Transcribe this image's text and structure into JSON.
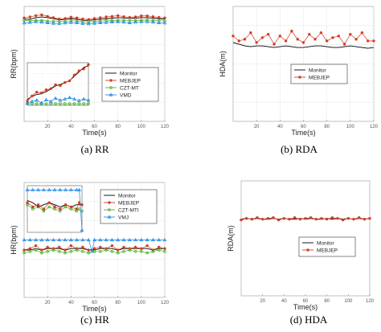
{
  "colors": {
    "monitor": "#000000",
    "mebjep": "#d4381e",
    "czt": "#4caf2a",
    "vmd": "#1e88e5"
  },
  "chart_data": [
    {
      "id": "rr",
      "type": "line",
      "caption": "(a)  RR",
      "xlabel": "Time(s)",
      "ylabel": "RR(bpm)",
      "xlim": [
        0,
        120
      ],
      "ylim": [
        0,
        45
      ],
      "xticks": [
        20,
        40,
        60,
        80,
        100,
        120
      ],
      "grid": true,
      "legend_position": "lower-right",
      "series": [
        {
          "name": "Monitor",
          "key": "monitor",
          "marker": "none",
          "x": [
            0,
            5,
            10,
            15,
            20,
            25,
            30,
            35,
            40,
            45,
            50,
            55,
            60,
            65,
            70,
            75,
            80,
            85,
            90,
            95,
            100,
            105,
            110,
            115,
            120
          ],
          "y": [
            40,
            40,
            40.6,
            40.9,
            40.6,
            40.2,
            39.8,
            39.9,
            40.2,
            40,
            39.6,
            39.5,
            39.8,
            40,
            40.2,
            40.4,
            40.6,
            40.5,
            40.3,
            40.4,
            40.6,
            40.6,
            40.4,
            40.2,
            40
          ]
        },
        {
          "name": "MEBJEP",
          "key": "mebjep",
          "marker": "star",
          "x": [
            0,
            5,
            10,
            15,
            20,
            25,
            30,
            35,
            40,
            45,
            50,
            55,
            60,
            65,
            70,
            75,
            80,
            85,
            90,
            95,
            100,
            105,
            110,
            115,
            120
          ],
          "y": [
            40.5,
            40.9,
            41.4,
            41.7,
            41.1,
            40.6,
            40.1,
            40.3,
            40.8,
            40.5,
            40.1,
            39.9,
            40.3,
            40.6,
            40.9,
            41.1,
            41.4,
            41,
            40.7,
            40.9,
            41.3,
            41.3,
            41,
            40.7,
            40.5
          ]
        },
        {
          "name": "CZT-MT",
          "key": "czt",
          "marker": "circle",
          "x": [
            0,
            5,
            10,
            15,
            20,
            25,
            30,
            35,
            40,
            45,
            50,
            55,
            60,
            65,
            70,
            75,
            80,
            85,
            90,
            95,
            100,
            105,
            110,
            115,
            120
          ],
          "y": [
            39.5,
            39.4,
            39.6,
            39.5,
            39.3,
            39.2,
            39.1,
            39.2,
            39.4,
            39.3,
            39,
            38.9,
            39.1,
            39.3,
            39.4,
            39.5,
            39.6,
            39.6,
            39.4,
            39.5,
            39.6,
            39.7,
            39.5,
            39.4,
            39.3
          ]
        },
        {
          "name": "VMD",
          "key": "vmd",
          "marker": "triangle",
          "x": [
            0,
            5,
            10,
            15,
            20,
            25,
            30,
            35,
            40,
            45,
            50,
            55,
            60,
            65,
            70,
            75,
            80,
            85,
            90,
            95,
            100,
            105,
            110,
            115,
            120
          ],
          "y": [
            38.5,
            38.7,
            39,
            38.8,
            38.6,
            38.4,
            38.3,
            38.5,
            38.7,
            38.6,
            38.3,
            38.2,
            38.4,
            38.6,
            38.7,
            38.9,
            39,
            38.8,
            38.6,
            38.8,
            39,
            39,
            38.8,
            38.6,
            38.5
          ]
        }
      ],
      "inset": {
        "xlim": [
          20,
          72
        ],
        "ylim": [
          34,
          45
        ],
        "x": [
          20,
          24,
          28,
          32,
          36,
          40,
          44,
          48,
          52,
          56,
          60,
          64,
          68,
          72
        ],
        "monitor": [
          35.5,
          36.3,
          36.8,
          37,
          37.5,
          38.2,
          39,
          39.4,
          39.8,
          40.4,
          41.5,
          42.6,
          43.8,
          44.2
        ],
        "mebjep": [
          35.1,
          36.4,
          37.4,
          37.2,
          38,
          38.3,
          39.3,
          39.1,
          39.9,
          40.3,
          41.8,
          42.9,
          43.4,
          44.5
        ],
        "czt": [
          34.4,
          34.4,
          34.4,
          34.4,
          34.4,
          34.4,
          34.4,
          34.4,
          34.4,
          34.4,
          34.4,
          34.4,
          34.4,
          34.4
        ],
        "vmd": [
          34.6,
          35,
          35.3,
          34.6,
          35.4,
          35,
          35.8,
          35.3,
          35.6,
          36,
          35.6,
          35.2,
          35.6,
          35.3
        ]
      }
    },
    {
      "id": "rda",
      "type": "line",
      "caption": "(b)  RDA",
      "xlabel": "Time(s)",
      "ylabel": "HDA(m)",
      "xlim": [
        0,
        120
      ],
      "ylim": [
        0,
        7
      ],
      "xticks": [
        20,
        40,
        60,
        80,
        100,
        120
      ],
      "grid": true,
      "legend_position": "lower-right",
      "series": [
        {
          "name": "Monitor",
          "key": "monitor",
          "marker": "none",
          "x": [
            0,
            5,
            10,
            15,
            20,
            25,
            30,
            35,
            40,
            45,
            50,
            55,
            60,
            65,
            70,
            75,
            80,
            85,
            90,
            95,
            100,
            105,
            110,
            115,
            120
          ],
          "y": [
            4.8,
            4.7,
            4.6,
            4.55,
            4.6,
            4.6,
            4.55,
            4.5,
            4.55,
            4.6,
            4.55,
            4.5,
            4.5,
            4.55,
            4.6,
            4.6,
            4.55,
            4.5,
            4.5,
            4.55,
            4.6,
            4.55,
            4.5,
            4.45,
            4.5
          ]
        },
        {
          "name": "MEBJEP",
          "key": "mebjep",
          "marker": "star",
          "x": [
            0,
            5,
            10,
            15,
            20,
            25,
            30,
            35,
            40,
            45,
            50,
            55,
            60,
            65,
            70,
            75,
            80,
            85,
            90,
            95,
            100,
            105,
            110,
            115,
            120
          ],
          "y": [
            5.2,
            4.9,
            5.0,
            5.4,
            4.8,
            5.1,
            5.3,
            4.7,
            5.2,
            4.9,
            5.5,
            5.0,
            4.8,
            5.3,
            5.0,
            5.4,
            4.9,
            5.1,
            5.2,
            4.7,
            5.3,
            5.0,
            5.4,
            4.9,
            4.9
          ]
        }
      ]
    },
    {
      "id": "hr",
      "type": "line",
      "caption": "(c)  HR",
      "xlabel": "Time(s)",
      "ylabel": "HR(bpm)",
      "xlim": [
        0,
        120
      ],
      "ylim": [
        30,
        110
      ],
      "xticks": [
        20,
        40,
        60,
        80,
        100,
        120
      ],
      "grid": true,
      "legend_position": "upper-right",
      "series": [
        {
          "name": "Monitor",
          "key": "monitor",
          "marker": "none",
          "x": [
            0,
            5,
            10,
            15,
            20,
            25,
            30,
            35,
            40,
            45,
            50,
            55,
            60,
            65,
            70,
            75,
            80,
            85,
            90,
            95,
            100,
            105,
            110,
            115,
            120
          ],
          "y": [
            63,
            63,
            64,
            63,
            64,
            64,
            64,
            63,
            64,
            64,
            64,
            63,
            63,
            64,
            64,
            64,
            63,
            64,
            64,
            64,
            64,
            64,
            63,
            64,
            64
          ]
        },
        {
          "name": "MEBJEP",
          "key": "mebjep",
          "marker": "star",
          "x": [
            0,
            5,
            10,
            15,
            20,
            25,
            30,
            35,
            40,
            45,
            50,
            55,
            60,
            65,
            70,
            75,
            80,
            85,
            90,
            95,
            100,
            105,
            110,
            115,
            120
          ],
          "y": [
            63,
            64,
            66,
            63,
            65,
            64,
            65,
            63,
            66,
            64,
            65,
            63,
            64,
            65,
            64,
            66,
            63,
            65,
            64,
            65,
            64,
            66,
            63,
            65,
            64
          ]
        },
        {
          "name": "CZT-MTI",
          "key": "czt",
          "marker": "circle",
          "x": [
            0,
            5,
            10,
            15,
            20,
            25,
            30,
            35,
            40,
            45,
            50,
            55,
            60,
            65,
            70,
            75,
            80,
            85,
            90,
            95,
            100,
            105,
            110,
            115,
            120
          ],
          "y": [
            61,
            62,
            63,
            61,
            62,
            63,
            62,
            61,
            62,
            63,
            62,
            61,
            62,
            62,
            63,
            62,
            61,
            62,
            63,
            62,
            62,
            61,
            62,
            63,
            62
          ]
        },
        {
          "name": "VMJ",
          "key": "vmd",
          "marker": "triangle",
          "x": [
            0,
            5,
            10,
            15,
            20,
            25,
            30,
            35,
            40,
            45,
            50,
            55,
            58,
            60,
            65,
            70,
            75,
            80,
            85,
            90,
            95,
            100,
            105,
            110,
            115,
            120
          ],
          "y": [
            70,
            70,
            70,
            70,
            70,
            70,
            70,
            70,
            70,
            70,
            70,
            70,
            62,
            70,
            70,
            70,
            70,
            70,
            70,
            70,
            70,
            70,
            70,
            70,
            70,
            70
          ]
        }
      ],
      "inset": {
        "xlim": [
          20,
          60
        ],
        "ylim": [
          60,
          82
        ],
        "x": [
          20,
          24,
          28,
          32,
          36,
          40,
          44,
          48,
          52,
          56,
          58,
          60
        ],
        "monitor": [
          75,
          74,
          72,
          73,
          74,
          73,
          72,
          73,
          72,
          73,
          73,
          73
        ],
        "mebjep": [
          74,
          72,
          73,
          71,
          74,
          72,
          71,
          73,
          72,
          71,
          74,
          73
        ],
        "czt": [
          73,
          71,
          72,
          70,
          72,
          71,
          70,
          72,
          71,
          70,
          71,
          70
        ],
        "vmd": [
          80,
          80,
          80,
          80,
          80,
          80,
          80,
          80,
          80,
          80,
          80,
          61
        ]
      }
    },
    {
      "id": "hda",
      "type": "line",
      "caption": "(d)  HDA",
      "xlabel": "Time(s)",
      "ylabel": "RDA(m)",
      "xlim": [
        0,
        120
      ],
      "ylim": [
        0,
        0.015
      ],
      "xticks": [
        20,
        40,
        60,
        80,
        100,
        120
      ],
      "grid": false,
      "legend_position": "lower-right",
      "series": [
        {
          "name": "Monitor",
          "key": "monitor",
          "marker": "none",
          "x": [
            0,
            5,
            10,
            15,
            20,
            25,
            30,
            35,
            40,
            45,
            50,
            55,
            60,
            65,
            70,
            75,
            80,
            85,
            90,
            95,
            100,
            105,
            110,
            115,
            120
          ],
          "y": [
            0.01,
            0.0101,
            0.01,
            0.0101,
            0.01,
            0.01,
            0.0101,
            0.01,
            0.0101,
            0.01,
            0.01,
            0.0101,
            0.01,
            0.0101,
            0.01,
            0.01,
            0.0101,
            0.01,
            0.0101,
            0.01,
            0.0101,
            0.01,
            0.0101,
            0.01,
            0.0101
          ]
        },
        {
          "name": "MEBJEP",
          "key": "mebjep",
          "marker": "star",
          "x": [
            0,
            5,
            10,
            15,
            20,
            25,
            30,
            35,
            40,
            45,
            50,
            55,
            60,
            65,
            70,
            75,
            80,
            85,
            90,
            95,
            100,
            105,
            110,
            115,
            120
          ],
          "y": [
            0.0099,
            0.0101,
            0.01,
            0.0102,
            0.01,
            0.0101,
            0.0102,
            0.0099,
            0.0101,
            0.01,
            0.0102,
            0.01,
            0.0101,
            0.0102,
            0.01,
            0.0101,
            0.01,
            0.0102,
            0.0101,
            0.0099,
            0.0101,
            0.01,
            0.0102,
            0.01,
            0.0101
          ]
        }
      ]
    }
  ]
}
